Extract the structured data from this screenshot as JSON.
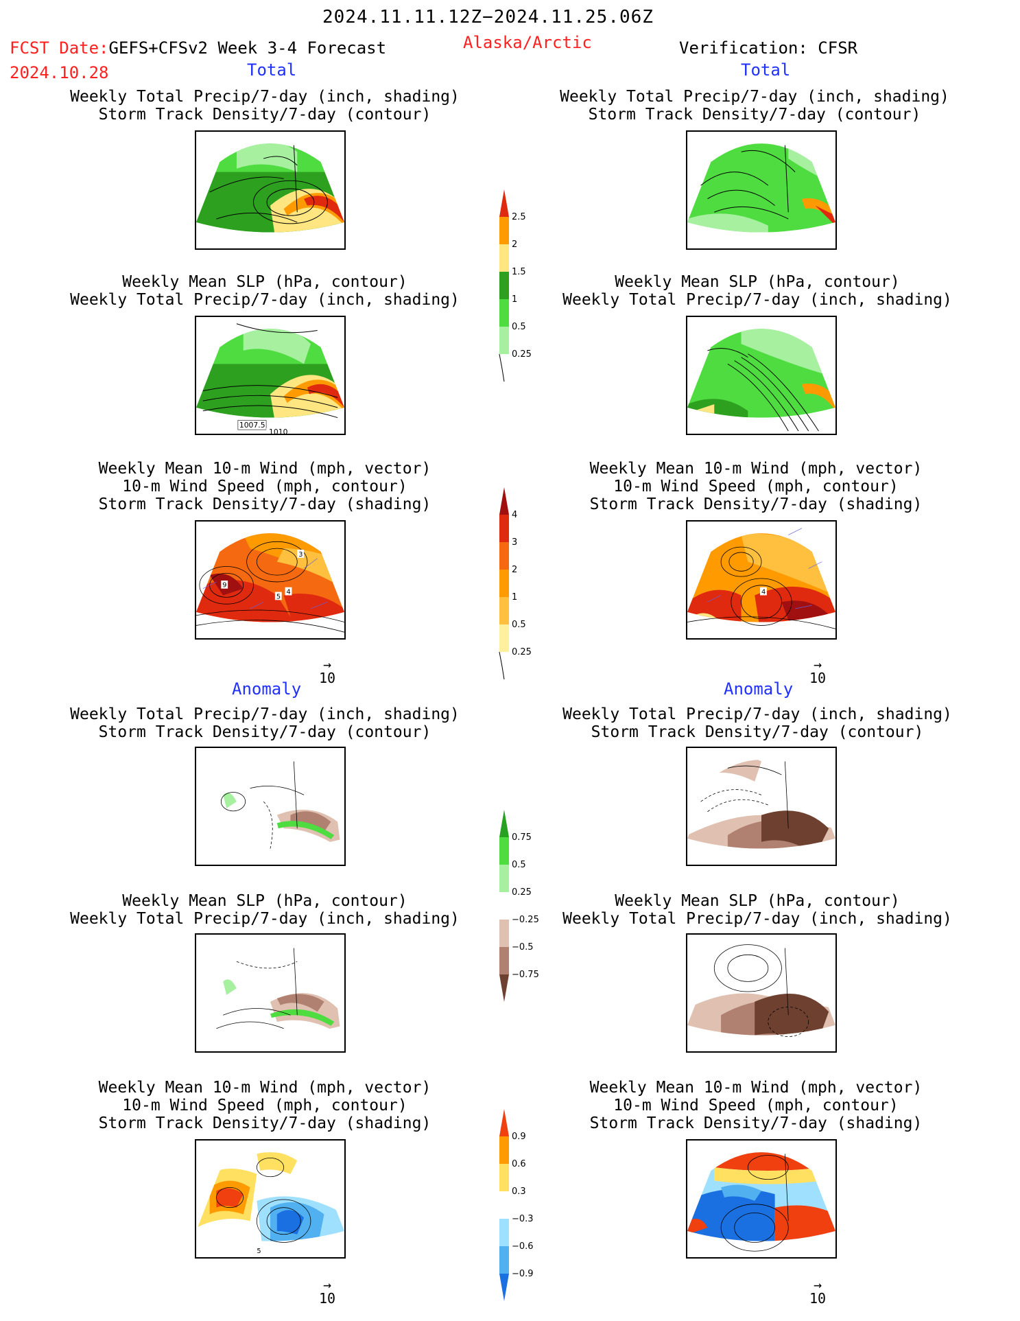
{
  "header": {
    "date_range": "2024.11.11.12Z−2024.11.25.06Z",
    "fcst_date_label": "FCST Date:",
    "fcst_model": "GEFS+CFSv2 Week 3-4 Forecast",
    "fcst_date": "2024.10.28",
    "region": "Alaska/Arctic",
    "verification": "Verification: CFSR"
  },
  "sections": {
    "total": "Total",
    "anomaly": "Anomaly"
  },
  "panel_titles": {
    "precip_track": [
      "Weekly Total Precip/7-day (inch, shading)",
      "Storm Track Density/7-day (contour)"
    ],
    "slp_precip": [
      "Weekly Mean SLP (hPa, contour)",
      "Weekly Total Precip/7-day (inch, shading)"
    ],
    "wind": [
      "Weekly Mean 10-m Wind (mph, vector)",
      "10-m Wind Speed (mph, contour)",
      "Storm Track Density/7-day (shading)"
    ]
  },
  "vector_scale": "10",
  "contour_labels": {
    "slp_a": "1007.5",
    "slp_b": "1010",
    "wind_9": "9",
    "wind_3": "3",
    "wind_5": "5",
    "wind_4": "4",
    "wind_4b": "4",
    "wind_anom_5": "5"
  },
  "colorbars": {
    "precip_total": {
      "labels": [
        "2.5",
        "2",
        "1.5",
        "1",
        "0.5",
        "0.25"
      ],
      "colors": [
        "#e02a10",
        "#ff9b00",
        "#ffe680",
        "#2da020",
        "#4fdc40",
        "#a6f0a0"
      ]
    },
    "track_total": {
      "labels": [
        "4",
        "3",
        "2",
        "1",
        "0.5",
        "0.25"
      ],
      "colors": [
        "#a01010",
        "#e02a10",
        "#f56a10",
        "#ff9b00",
        "#ffc040",
        "#fff0a0"
      ]
    },
    "precip_anom": {
      "labels": [
        "0.75",
        "0.5",
        "0.25",
        "−0.25",
        "−0.5",
        "−0.75"
      ],
      "colors": [
        "#28a020",
        "#4fdc40",
        "#a6f0a0",
        "#ffffff",
        "#e0c0b0",
        "#b08070",
        "#6e4030"
      ]
    },
    "track_anom": {
      "labels": [
        "0.9",
        "0.6",
        "0.3",
        "−0.3",
        "−0.6",
        "−0.9"
      ],
      "colors": [
        "#f04010",
        "#ff9b00",
        "#ffe060",
        "#ffffff",
        "#a0e0ff",
        "#50b0f0",
        "#1a70e0"
      ]
    }
  }
}
